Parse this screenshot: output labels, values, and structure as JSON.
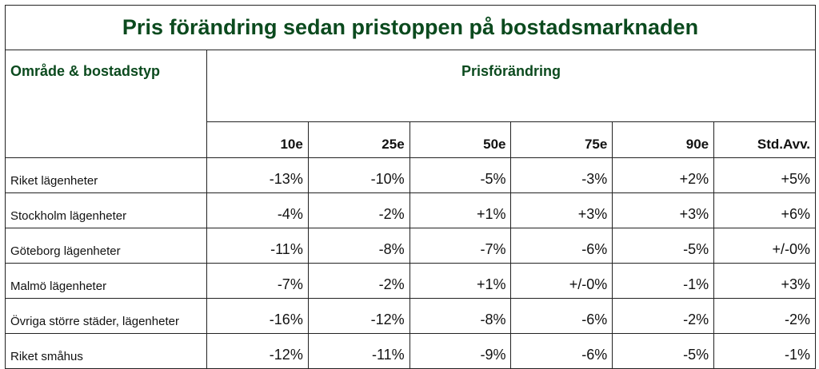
{
  "title": "Pris förändring sedan pristoppen på bostadsmarknaden",
  "header": {
    "row_label": "Område & bostadstyp",
    "group": "Prisförändring",
    "columns": [
      "10e",
      "25e",
      "50e",
      "75e",
      "90e",
      "Std.Avv."
    ]
  },
  "table": {
    "rows": [
      {
        "label": "Riket lägenheter",
        "cells": [
          "-13%",
          "-10%",
          "-5%",
          "-3%",
          "+2%",
          "+5%"
        ]
      },
      {
        "label": "Stockholm lägenheter",
        "cells": [
          "-4%",
          "-2%",
          "+1%",
          "+3%",
          "+3%",
          "+6%"
        ]
      },
      {
        "label": "Göteborg lägenheter",
        "cells": [
          "-11%",
          "-8%",
          "-7%",
          "-6%",
          "-5%",
          "+/-0%"
        ]
      },
      {
        "label": "Malmö lägenheter",
        "cells": [
          "-7%",
          "-2%",
          "+1%",
          "+/-0%",
          "-1%",
          "+3%"
        ]
      },
      {
        "label": "Övriga större städer, lägenheter",
        "cells": [
          "-16%",
          "-12%",
          "-8%",
          "-6%",
          "-2%",
          "-2%"
        ]
      },
      {
        "label": "Riket småhus",
        "cells": [
          "-12%",
          "-11%",
          "-9%",
          "-6%",
          "-5%",
          "-1%"
        ]
      }
    ]
  }
}
